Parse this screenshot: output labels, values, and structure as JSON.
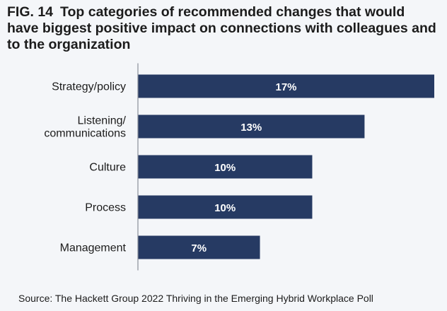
{
  "figure": {
    "number": "FIG. 14",
    "title": "Top categories of recommended changes that would have biggest positive impact on connections with colleagues and to the organization"
  },
  "source": "Source: The Hackett Group 2022 Thriving in the Emerging Hybrid Workplace Poll",
  "colors": {
    "bar": "#263a63",
    "bar_label": "#ffffff",
    "text": "#1c1c1c",
    "axis": "#8a8f99",
    "background": "#f4f6f9"
  },
  "chart_data": {
    "type": "bar",
    "orientation": "horizontal",
    "categories": [
      [
        "Strategy/policy"
      ],
      [
        "Listening/",
        "communications"
      ],
      [
        "Culture"
      ],
      [
        "Process"
      ],
      [
        "Management"
      ]
    ],
    "values": [
      17,
      13,
      10,
      10,
      7
    ],
    "data_labels": [
      "17%",
      "13%",
      "10%",
      "10%",
      "7%"
    ],
    "unit": "%",
    "xlim": [
      0,
      17
    ],
    "grid": false,
    "legend": "none"
  }
}
